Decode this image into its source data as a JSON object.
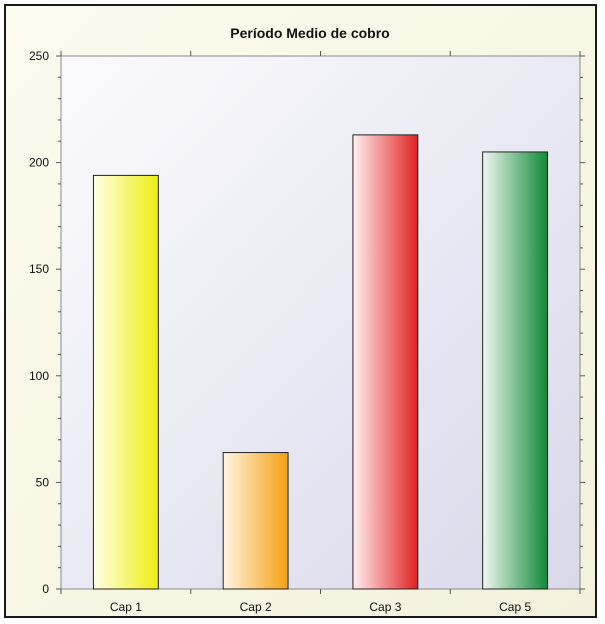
{
  "chart_data": {
    "type": "bar",
    "title": "Período Medio de cobro",
    "xlabel": "",
    "ylabel": "",
    "categories": [
      "Cap 1",
      "Cap 2",
      "Cap 3",
      "Cap 5"
    ],
    "values": [
      194,
      64,
      213,
      205
    ],
    "ylim": [
      0,
      250
    ],
    "yticks": [
      0,
      50,
      100,
      150,
      200,
      250
    ],
    "grid": false,
    "legend": "none",
    "bar_colors": [
      {
        "light": "#ffffe6",
        "dark": "#eeee10"
      },
      {
        "light": "#fff6e6",
        "dark": "#f5a010"
      },
      {
        "light": "#fff0f0",
        "dark": "#e02020"
      },
      {
        "light": "#f0f8f0",
        "dark": "#108838"
      }
    ]
  }
}
